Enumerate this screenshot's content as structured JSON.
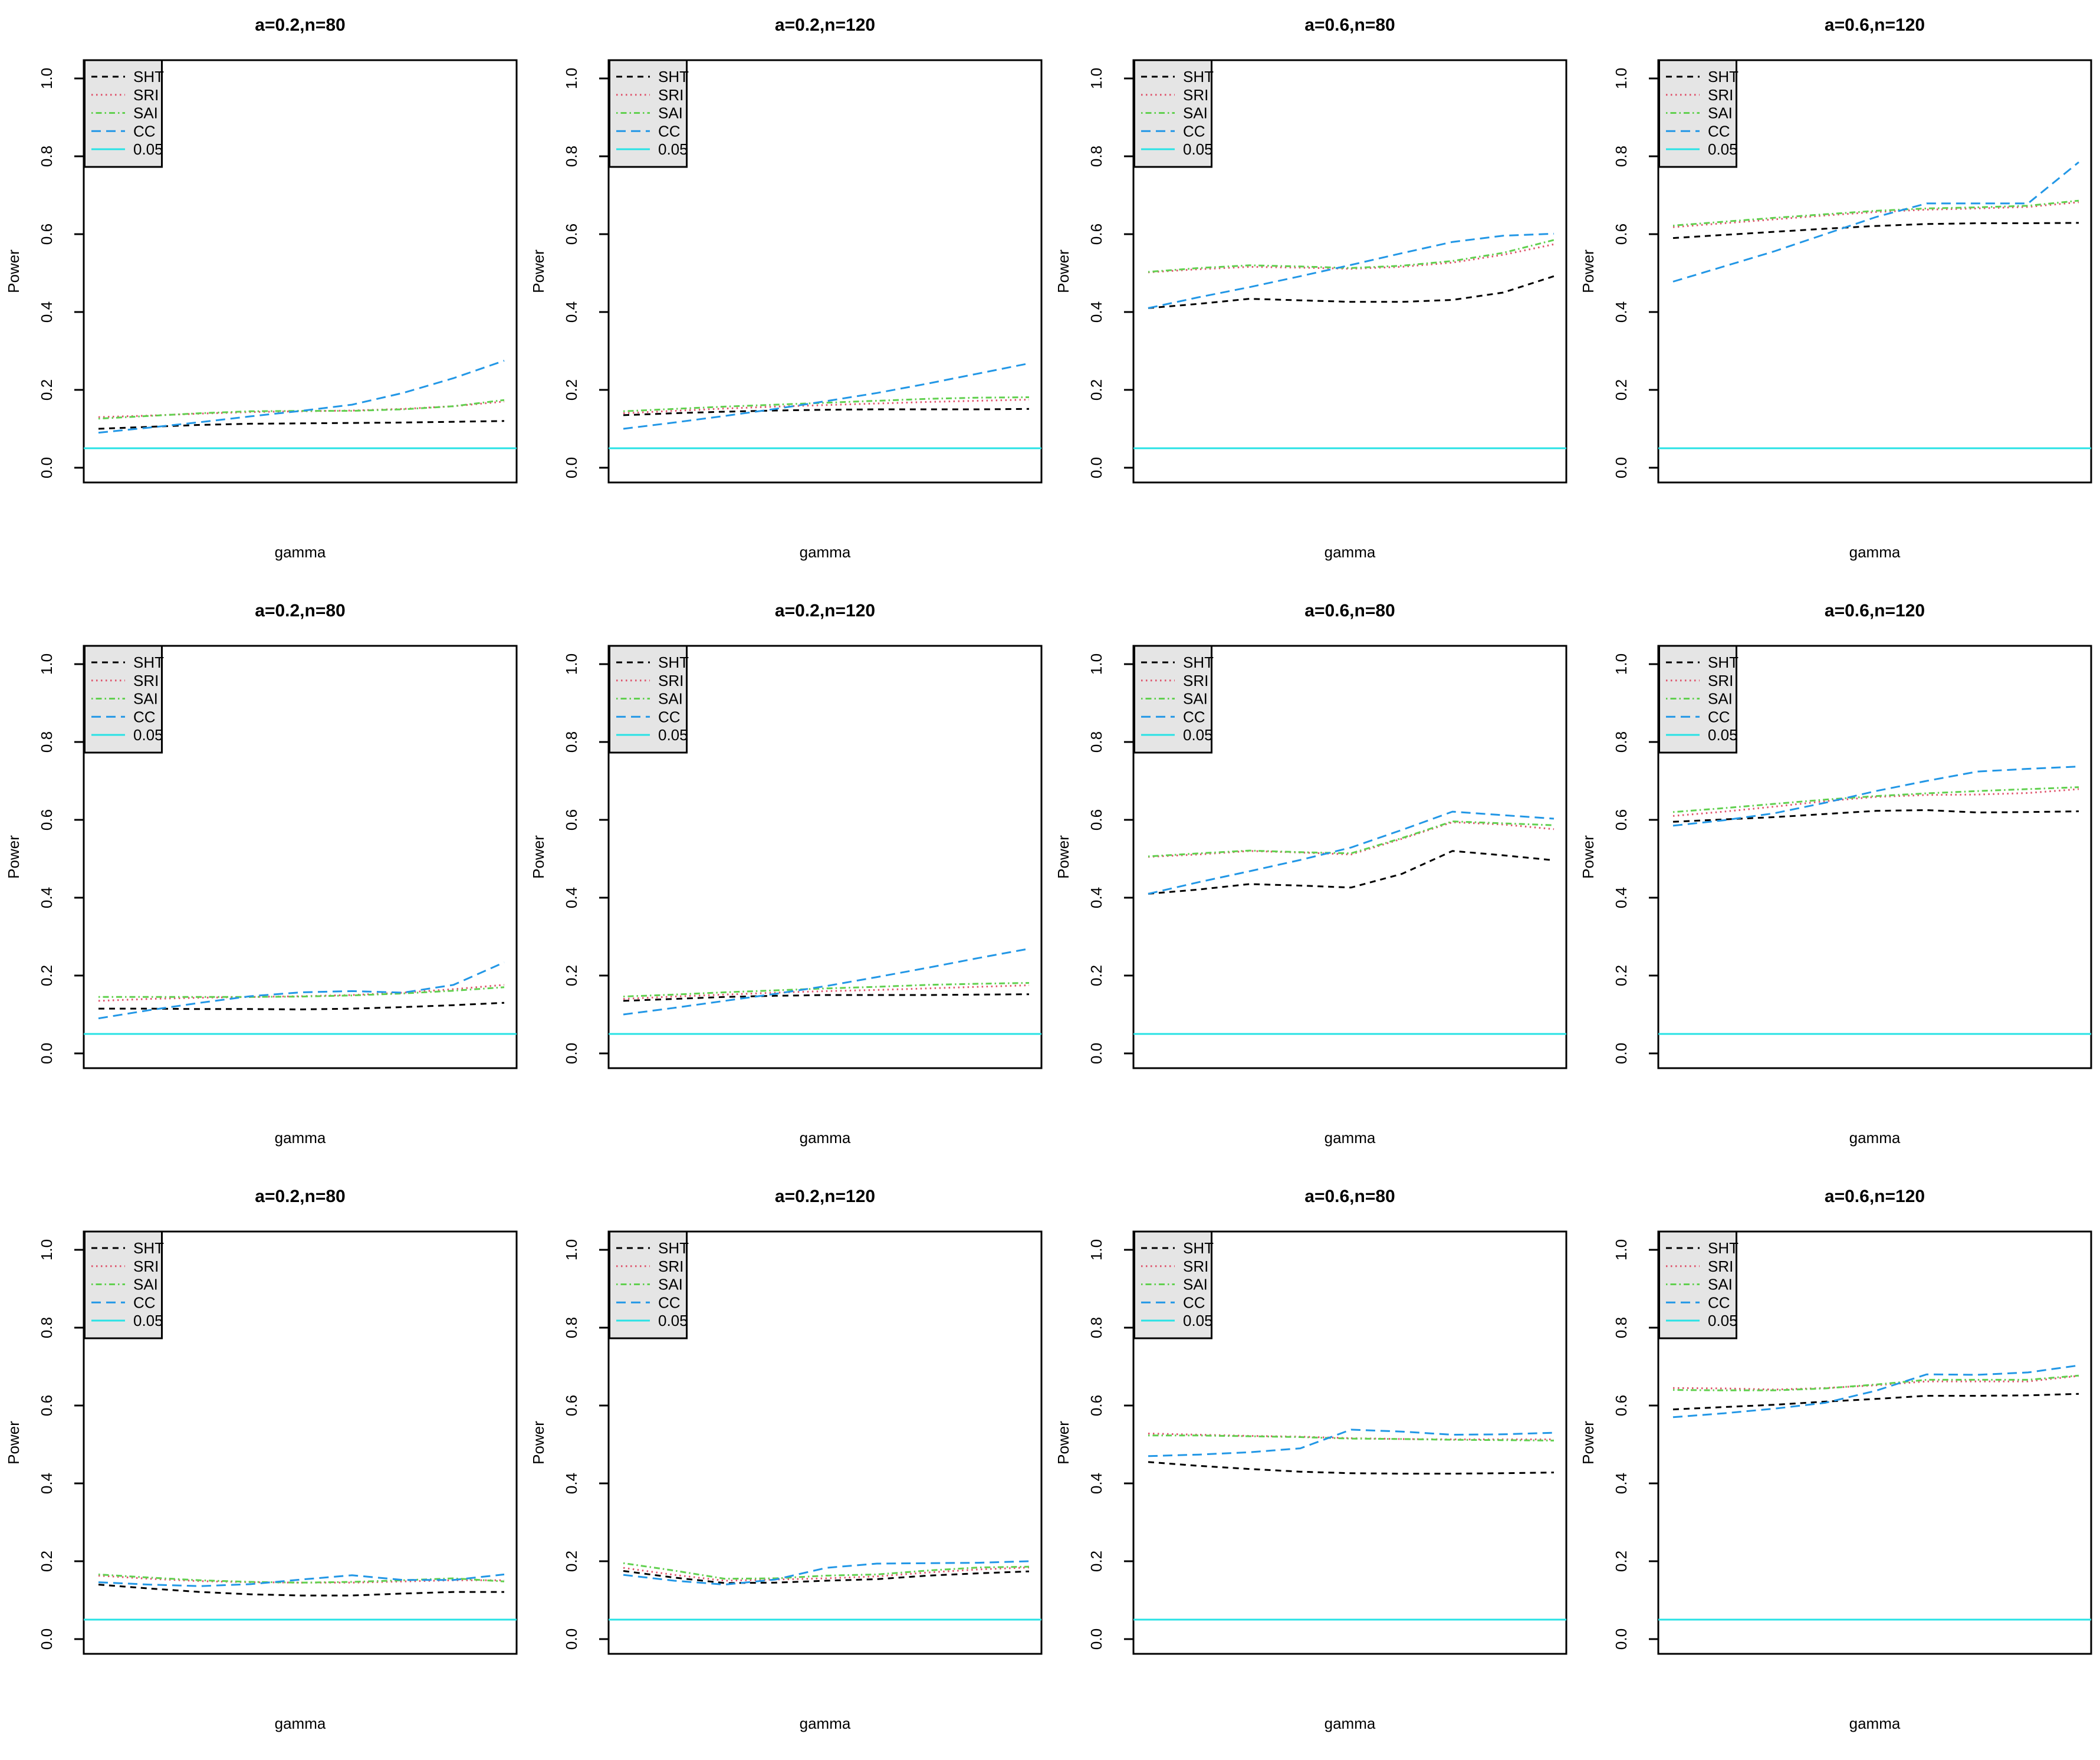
{
  "page": {
    "background": "#ffffff",
    "grid": {
      "rows": 3,
      "cols": 4
    }
  },
  "axes": {
    "ylabel": "Power",
    "xlabel": "gamma",
    "yticks": [
      "0.0",
      "0.2",
      "0.4",
      "0.6",
      "0.8",
      "1.0"
    ],
    "ytick_values": [
      0.0,
      0.2,
      0.4,
      0.6,
      0.8,
      1.0
    ],
    "ylim": [
      0,
      1
    ],
    "x_ticks_shown": false
  },
  "legend": {
    "position": "topleft",
    "background": "#E5E5E5",
    "border": "#000000",
    "items": [
      "SHT",
      "SRI",
      "SAI",
      "CC",
      "0.05"
    ]
  },
  "series_styles": [
    {
      "name": "SHT",
      "color": "#000000",
      "dash": "10,8",
      "kind": "dashed"
    },
    {
      "name": "SRI",
      "color": "#DF536B",
      "dash": "2.5,5.5",
      "kind": "dotted"
    },
    {
      "name": "SAI",
      "color": "#61D04F",
      "dash": "2.5,5,10,5",
      "kind": "dotdash"
    },
    {
      "name": "CC",
      "color": "#2297E6",
      "dash": "16,9",
      "kind": "longdash"
    },
    {
      "name": "0.05",
      "color": "#28E2E5",
      "dash": "",
      "kind": "solid"
    }
  ],
  "chart_data": [
    {
      "type": "line",
      "title": "a=0.2,n=80",
      "xlabel": "gamma",
      "ylabel": "Power",
      "ylim": [
        0,
        1
      ],
      "reference_line": 0.05,
      "series": [
        {
          "name": "SHT",
          "values": [
            0.1,
            0.105,
            0.11,
            0.113,
            0.114,
            0.115,
            0.116,
            0.118,
            0.12
          ]
        },
        {
          "name": "SRI",
          "values": [
            0.13,
            0.134,
            0.139,
            0.143,
            0.145,
            0.147,
            0.151,
            0.158,
            0.17
          ]
        },
        {
          "name": "SAI",
          "values": [
            0.126,
            0.133,
            0.14,
            0.145,
            0.146,
            0.146,
            0.15,
            0.158,
            0.174
          ]
        },
        {
          "name": "CC",
          "values": [
            0.09,
            0.103,
            0.117,
            0.132,
            0.146,
            0.162,
            0.192,
            0.23,
            0.275
          ]
        }
      ]
    },
    {
      "type": "line",
      "title": "a=0.2,n=120",
      "xlabel": "gamma",
      "ylabel": "Power",
      "ylim": [
        0,
        1
      ],
      "reference_line": 0.05,
      "series": [
        {
          "name": "SHT",
          "values": [
            0.135,
            0.14,
            0.144,
            0.147,
            0.149,
            0.15,
            0.15,
            0.15,
            0.151
          ]
        },
        {
          "name": "SRI",
          "values": [
            0.14,
            0.146,
            0.152,
            0.157,
            0.161,
            0.165,
            0.169,
            0.172,
            0.175
          ]
        },
        {
          "name": "SAI",
          "values": [
            0.145,
            0.151,
            0.157,
            0.162,
            0.167,
            0.172,
            0.177,
            0.18,
            0.181
          ]
        },
        {
          "name": "CC",
          "values": [
            0.1,
            0.116,
            0.133,
            0.151,
            0.171,
            0.192,
            0.216,
            0.242,
            0.268
          ]
        }
      ]
    },
    {
      "type": "line",
      "title": "a=0.6,n=80",
      "xlabel": "gamma",
      "ylabel": "Power",
      "ylim": [
        0,
        1
      ],
      "reference_line": 0.05,
      "series": [
        {
          "name": "SHT",
          "values": [
            0.41,
            0.421,
            0.434,
            0.43,
            0.426,
            0.426,
            0.431,
            0.45,
            0.492
          ]
        },
        {
          "name": "SRI",
          "values": [
            0.502,
            0.51,
            0.516,
            0.514,
            0.511,
            0.516,
            0.527,
            0.547,
            0.574
          ]
        },
        {
          "name": "SAI",
          "values": [
            0.503,
            0.513,
            0.52,
            0.517,
            0.513,
            0.519,
            0.531,
            0.552,
            0.585
          ]
        },
        {
          "name": "CC",
          "values": [
            0.41,
            0.438,
            0.464,
            0.492,
            0.521,
            0.551,
            0.58,
            0.596,
            0.601
          ]
        }
      ]
    },
    {
      "type": "line",
      "title": "a=0.6,n=120",
      "xlabel": "gamma",
      "ylabel": "Power",
      "ylim": [
        0,
        1
      ],
      "reference_line": 0.05,
      "series": [
        {
          "name": "SHT",
          "values": [
            0.59,
            0.598,
            0.606,
            0.614,
            0.621,
            0.626,
            0.628,
            0.628,
            0.629
          ]
        },
        {
          "name": "SRI",
          "values": [
            0.618,
            0.628,
            0.638,
            0.648,
            0.657,
            0.663,
            0.666,
            0.67,
            0.682
          ]
        },
        {
          "name": "SAI",
          "values": [
            0.622,
            0.632,
            0.642,
            0.651,
            0.66,
            0.666,
            0.669,
            0.673,
            0.686
          ]
        },
        {
          "name": "CC",
          "values": [
            0.478,
            0.517,
            0.556,
            0.6,
            0.644,
            0.679,
            0.679,
            0.679,
            0.785
          ]
        }
      ]
    },
    {
      "type": "line",
      "title": "a=0.2,n=80",
      "xlabel": "gamma",
      "ylabel": "Power",
      "ylim": [
        0,
        1
      ],
      "reference_line": 0.05,
      "series": [
        {
          "name": "SHT",
          "values": [
            0.115,
            0.115,
            0.114,
            0.114,
            0.113,
            0.115,
            0.119,
            0.124,
            0.13
          ]
        },
        {
          "name": "SRI",
          "values": [
            0.135,
            0.14,
            0.143,
            0.145,
            0.147,
            0.15,
            0.156,
            0.165,
            0.176
          ]
        },
        {
          "name": "SAI",
          "values": [
            0.145,
            0.145,
            0.145,
            0.145,
            0.146,
            0.149,
            0.154,
            0.161,
            0.17
          ]
        },
        {
          "name": "CC",
          "values": [
            0.09,
            0.111,
            0.13,
            0.147,
            0.157,
            0.16,
            0.156,
            0.176,
            0.234
          ]
        }
      ]
    },
    {
      "type": "line",
      "title": "a=0.2,n=120",
      "xlabel": "gamma",
      "ylabel": "Power",
      "ylim": [
        0,
        1
      ],
      "reference_line": 0.05,
      "series": [
        {
          "name": "SHT",
          "values": [
            0.135,
            0.14,
            0.145,
            0.148,
            0.15,
            0.15,
            0.15,
            0.151,
            0.152
          ]
        },
        {
          "name": "SRI",
          "values": [
            0.14,
            0.146,
            0.151,
            0.156,
            0.16,
            0.163,
            0.167,
            0.171,
            0.175
          ]
        },
        {
          "name": "SAI",
          "values": [
            0.146,
            0.151,
            0.157,
            0.162,
            0.167,
            0.171,
            0.176,
            0.179,
            0.181
          ]
        },
        {
          "name": "CC",
          "values": [
            0.1,
            0.117,
            0.135,
            0.153,
            0.173,
            0.196,
            0.22,
            0.245,
            0.269
          ]
        }
      ]
    },
    {
      "type": "line",
      "title": "a=0.6,n=80",
      "xlabel": "gamma",
      "ylabel": "Power",
      "ylim": [
        0,
        1
      ],
      "reference_line": 0.05,
      "series": [
        {
          "name": "SHT",
          "values": [
            0.41,
            0.421,
            0.435,
            0.431,
            0.426,
            0.461,
            0.52,
            0.509,
            0.496
          ]
        },
        {
          "name": "SRI",
          "values": [
            0.505,
            0.511,
            0.52,
            0.516,
            0.511,
            0.551,
            0.594,
            0.588,
            0.576
          ]
        },
        {
          "name": "SAI",
          "values": [
            0.506,
            0.514,
            0.521,
            0.517,
            0.514,
            0.553,
            0.596,
            0.591,
            0.586
          ]
        },
        {
          "name": "CC",
          "values": [
            0.41,
            0.44,
            0.468,
            0.497,
            0.529,
            0.574,
            0.621,
            0.612,
            0.603
          ]
        }
      ]
    },
    {
      "type": "line",
      "title": "a=0.6,n=120",
      "xlabel": "gamma",
      "ylabel": "Power",
      "ylim": [
        0,
        1
      ],
      "reference_line": 0.05,
      "series": [
        {
          "name": "SHT",
          "values": [
            0.595,
            0.601,
            0.607,
            0.615,
            0.623,
            0.625,
            0.619,
            0.62,
            0.622
          ]
        },
        {
          "name": "SRI",
          "values": [
            0.61,
            0.621,
            0.634,
            0.648,
            0.659,
            0.664,
            0.665,
            0.669,
            0.679
          ]
        },
        {
          "name": "SAI",
          "values": [
            0.62,
            0.63,
            0.641,
            0.652,
            0.661,
            0.668,
            0.674,
            0.679,
            0.684
          ]
        },
        {
          "name": "CC",
          "values": [
            0.585,
            0.599,
            0.617,
            0.644,
            0.674,
            0.7,
            0.724,
            0.731,
            0.737
          ]
        }
      ]
    },
    {
      "type": "line",
      "title": "a=0.2,n=80",
      "xlabel": "gamma",
      "ylabel": "Power",
      "ylim": [
        0,
        1
      ],
      "reference_line": 0.05,
      "series": [
        {
          "name": "SHT",
          "values": [
            0.14,
            0.13,
            0.121,
            0.115,
            0.112,
            0.112,
            0.117,
            0.121,
            0.121
          ]
        },
        {
          "name": "SRI",
          "values": [
            0.163,
            0.155,
            0.149,
            0.146,
            0.145,
            0.145,
            0.148,
            0.151,
            0.151
          ]
        },
        {
          "name": "SAI",
          "values": [
            0.166,
            0.158,
            0.151,
            0.147,
            0.145,
            0.147,
            0.151,
            0.156,
            0.148
          ]
        },
        {
          "name": "CC",
          "values": [
            0.146,
            0.14,
            0.136,
            0.141,
            0.153,
            0.164,
            0.152,
            0.152,
            0.166
          ]
        }
      ]
    },
    {
      "type": "line",
      "title": "a=0.2,n=120",
      "xlabel": "gamma",
      "ylabel": "Power",
      "ylim": [
        0,
        1
      ],
      "reference_line": 0.05,
      "series": [
        {
          "name": "SHT",
          "values": [
            0.175,
            0.158,
            0.144,
            0.145,
            0.15,
            0.154,
            0.163,
            0.169,
            0.174
          ]
        },
        {
          "name": "SRI",
          "values": [
            0.183,
            0.165,
            0.15,
            0.153,
            0.156,
            0.161,
            0.171,
            0.179,
            0.184
          ]
        },
        {
          "name": "SAI",
          "values": [
            0.195,
            0.176,
            0.155,
            0.156,
            0.163,
            0.166,
            0.176,
            0.184,
            0.186
          ]
        },
        {
          "name": "CC",
          "values": [
            0.165,
            0.15,
            0.14,
            0.153,
            0.183,
            0.194,
            0.195,
            0.196,
            0.2
          ]
        }
      ]
    },
    {
      "type": "line",
      "title": "a=0.6,n=80",
      "xlabel": "gamma",
      "ylabel": "Power",
      "ylim": [
        0,
        1
      ],
      "reference_line": 0.05,
      "series": [
        {
          "name": "SHT",
          "values": [
            0.455,
            0.445,
            0.437,
            0.43,
            0.426,
            0.425,
            0.425,
            0.426,
            0.428
          ]
        },
        {
          "name": "SRI",
          "values": [
            0.528,
            0.525,
            0.522,
            0.52,
            0.516,
            0.514,
            0.513,
            0.513,
            0.513
          ]
        },
        {
          "name": "SAI",
          "values": [
            0.523,
            0.523,
            0.521,
            0.519,
            0.515,
            0.514,
            0.512,
            0.511,
            0.51
          ]
        },
        {
          "name": "CC",
          "values": [
            0.47,
            0.474,
            0.48,
            0.49,
            0.538,
            0.533,
            0.525,
            0.526,
            0.53
          ]
        }
      ]
    },
    {
      "type": "line",
      "title": "a=0.6,n=120",
      "xlabel": "gamma",
      "ylabel": "Power",
      "ylim": [
        0,
        1
      ],
      "reference_line": 0.05,
      "series": [
        {
          "name": "SHT",
          "values": [
            0.59,
            0.596,
            0.602,
            0.61,
            0.617,
            0.625,
            0.625,
            0.626,
            0.63
          ]
        },
        {
          "name": "SRI",
          "values": [
            0.645,
            0.644,
            0.641,
            0.645,
            0.652,
            0.662,
            0.662,
            0.662,
            0.676
          ]
        },
        {
          "name": "SAI",
          "values": [
            0.64,
            0.639,
            0.639,
            0.644,
            0.654,
            0.666,
            0.666,
            0.666,
            0.677
          ]
        },
        {
          "name": "CC",
          "values": [
            0.57,
            0.58,
            0.592,
            0.607,
            0.638,
            0.68,
            0.679,
            0.685,
            0.703
          ]
        }
      ]
    }
  ]
}
